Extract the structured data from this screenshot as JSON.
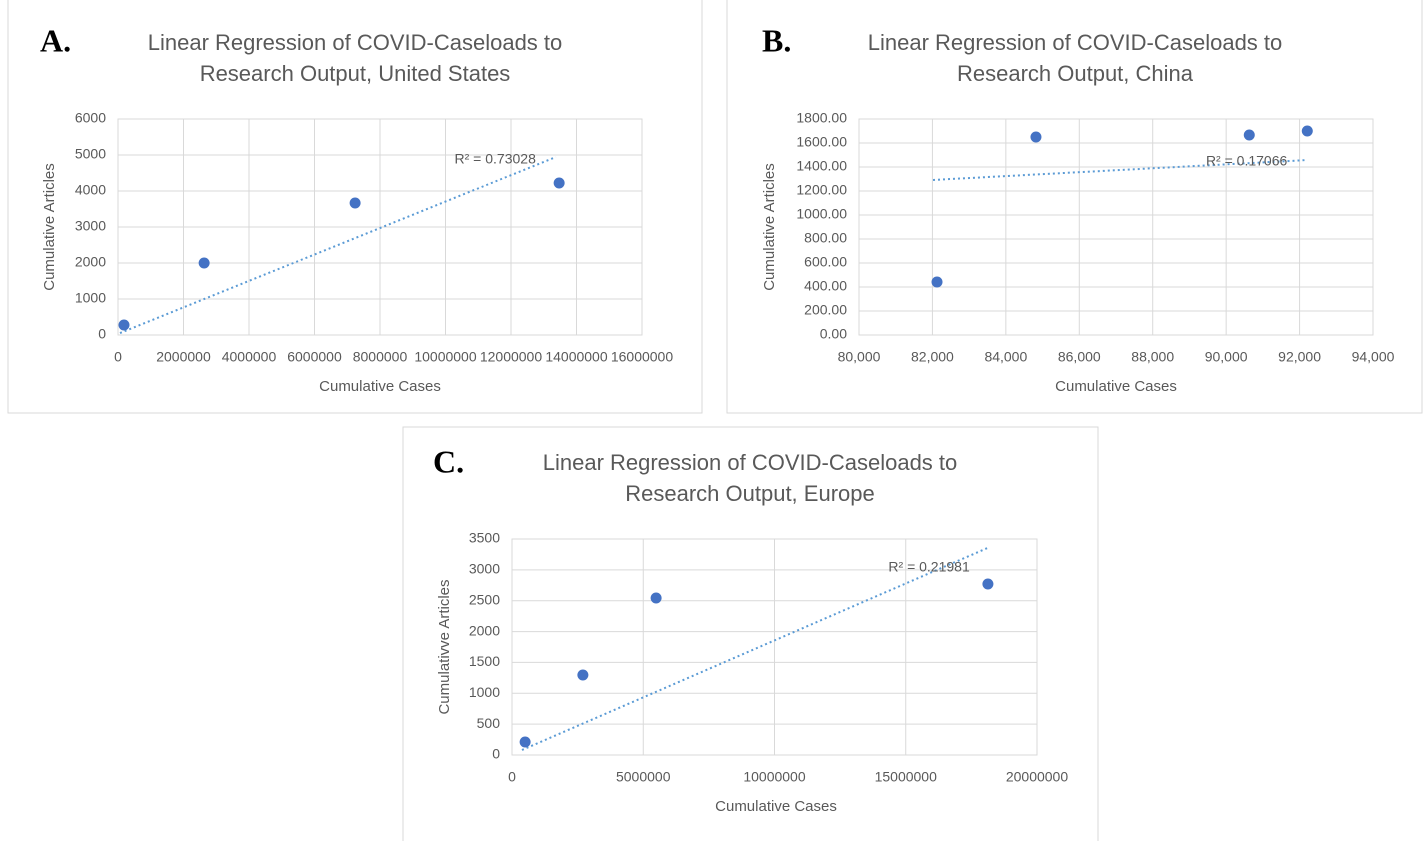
{
  "chart_data": [
    {
      "type": "scatter",
      "panel": "A.",
      "title": [
        "Linear Regression of COVID-Caseloads to",
        "Research Output, United States"
      ],
      "x_label": "Cumulative Cases",
      "y_label": "Cumulative Articles",
      "x": [
        183000,
        2630000,
        7240000,
        13470000
      ],
      "values": [
        278,
        2000,
        3667,
        4222
      ],
      "color": "#4472c4",
      "trendline": {
        "x": [
          61000,
          13370000
        ],
        "y": [
          55,
          4944
        ],
        "color": "#5b9bd5",
        "label": "R² = 0.73028"
      },
      "xlim": [
        0,
        16000000
      ],
      "xticks": [
        0,
        2000000,
        4000000,
        6000000,
        8000000,
        10000000,
        12000000,
        14000000,
        16000000
      ],
      "ylim": [
        0,
        6000
      ],
      "yticks": [
        0,
        1000,
        2000,
        3000,
        4000,
        5000,
        6000
      ],
      "grid": true
    },
    {
      "type": "scatter",
      "panel": "B.",
      "title": [
        "Linear Regression of COVID-Caseloads to",
        "Research Output, China"
      ],
      "x_label": "Cumulative Cases",
      "y_label": "Cumulative Articles",
      "x": [
        82125,
        84820,
        90630,
        92210
      ],
      "values": [
        442,
        1650,
        1667,
        1700
      ],
      "color": "#4472c4",
      "trendline": {
        "x": [
          82016,
          92210
        ],
        "y": [
          1292,
          1458
        ],
        "color": "#5b9bd5",
        "label": "R² = 0.17066"
      },
      "xlim": [
        80000,
        94000
      ],
      "xticks": [
        {
          "value": 80000,
          "label": "80,000"
        },
        {
          "value": 82000,
          "label": "82,000"
        },
        {
          "value": 84000,
          "label": "84,000"
        },
        {
          "value": 86000,
          "label": "86,000"
        },
        {
          "value": 88000,
          "label": "88,000"
        },
        {
          "value": 90000,
          "label": "90,000"
        },
        {
          "value": 92000,
          "label": "92,000"
        },
        {
          "value": 94000,
          "label": "94,000"
        }
      ],
      "ylim": [
        0,
        1800
      ],
      "yticks": [
        {
          "value": 0,
          "label": "0.00"
        },
        {
          "value": 200,
          "label": "200.00"
        },
        {
          "value": 400,
          "label": "400.00"
        },
        {
          "value": 600,
          "label": "600.00"
        },
        {
          "value": 800,
          "label": "800.00"
        },
        {
          "value": 1000,
          "label": "1000.00"
        },
        {
          "value": 1200,
          "label": "1200.00"
        },
        {
          "value": 1400,
          "label": "1400.00"
        },
        {
          "value": 1600,
          "label": "1600.00"
        },
        {
          "value": 1800,
          "label": "1800.00"
        }
      ],
      "grid": true
    },
    {
      "type": "scatter",
      "panel": "C.",
      "title": [
        "Linear Regression of COVID-Caseloads to",
        "Research Output, Europe"
      ],
      "x_label": "Cumulative Cases",
      "y_label": "Cumulativve Articles",
      "x": [
        500000,
        2700000,
        5490000,
        18130000
      ],
      "values": [
        211,
        1296,
        2544,
        2771
      ],
      "color": "#4472c4",
      "trendline": {
        "x": [
          380000,
          18200000
        ],
        "y": [
          81,
          3370
        ],
        "color": "#5b9bd5",
        "label": "R² = 0.21981"
      },
      "xlim": [
        0,
        20000000
      ],
      "xticks": [
        0,
        5000000,
        10000000,
        15000000,
        20000000
      ],
      "ylim": [
        0,
        3500
      ],
      "yticks": [
        0,
        500,
        1000,
        1500,
        2000,
        2500,
        3000,
        3500
      ],
      "grid": true
    }
  ]
}
